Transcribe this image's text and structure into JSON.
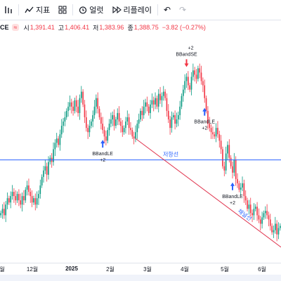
{
  "toolbar": {
    "indicators_label": "지표",
    "alerts_label": "얼럿",
    "replay_label": "리플레이",
    "icons": [
      "bar-chart-icon",
      "indicators-icon",
      "templates-icon",
      "alert-icon",
      "replay-icon",
      "undo-icon",
      "redo-icon"
    ]
  },
  "legend": {
    "symbol": "CE",
    "badge": "≈",
    "open_label": "시",
    "open_value": "1,391.41",
    "high_label": "고",
    "high_value": "1,406.41",
    "low_label": "저",
    "low_value": "1,383.96",
    "close_label": "종",
    "close_value": "1,388.75",
    "change": "−3.82 (−0.27%)"
  },
  "colors": {
    "up": "#089981",
    "down": "#f23645",
    "resistance": "#2962ff",
    "trendline": "#e0334d",
    "signal_arrow": "#2962ff"
  },
  "chart_data": {
    "type": "candlestick",
    "x_tick_labels": [
      "월",
      "12월",
      "2025",
      "2월",
      "3월",
      "4월",
      "5월",
      "6월"
    ],
    "resistance_label": "저항선",
    "trendline_label": "채널선",
    "signals": [
      {
        "label": "BBandLE",
        "sublabel": "+2",
        "direction": "up"
      },
      {
        "label": "BBandSE",
        "sublabel": "+2",
        "direction": "down"
      },
      {
        "label": "BBandLE",
        "sublabel": "+2",
        "direction": "up"
      },
      {
        "label": "BBandLE",
        "sublabel": "+2",
        "direction": "up"
      }
    ],
    "closes": [
      50,
      52,
      49,
      54,
      57,
      55,
      58,
      60,
      58,
      56,
      59,
      56,
      54,
      58,
      56,
      61,
      63,
      60,
      58,
      55,
      57,
      54,
      57,
      59,
      63,
      67,
      70,
      72,
      68,
      74,
      76,
      74,
      80,
      83,
      85,
      82,
      87,
      91,
      93,
      95,
      98,
      100,
      102,
      100,
      98,
      103,
      100,
      97,
      104,
      107,
      101,
      95,
      90,
      88,
      91,
      93,
      96,
      100,
      104,
      99,
      95,
      92,
      89,
      86,
      84,
      89,
      92,
      94,
      96,
      91,
      94,
      97,
      93,
      91,
      88,
      90,
      93,
      95,
      90,
      89,
      86,
      85,
      88,
      92,
      94,
      98,
      96,
      100,
      102,
      100,
      97,
      101,
      103,
      101,
      104,
      100,
      106,
      103,
      105,
      107,
      104,
      98,
      94,
      90,
      95,
      96,
      92,
      94,
      96,
      100,
      105,
      108,
      112,
      114,
      110,
      108,
      114,
      117,
      115,
      113,
      118,
      116,
      112,
      110,
      104,
      98,
      92,
      90,
      88,
      87,
      86,
      90,
      87,
      84,
      80,
      72,
      70,
      78,
      82,
      76,
      72,
      69,
      75,
      66,
      64,
      61,
      62,
      64,
      58,
      56,
      52,
      54,
      50,
      49,
      52,
      53,
      49,
      47,
      45,
      48,
      50,
      51,
      49,
      47,
      44,
      41,
      42,
      45,
      40,
      43,
      44
    ]
  }
}
